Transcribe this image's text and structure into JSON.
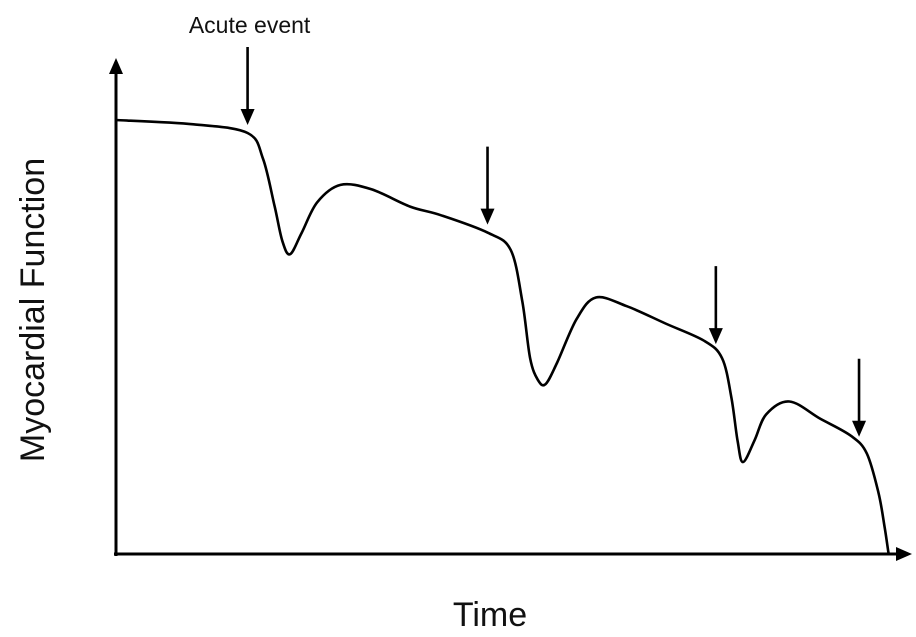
{
  "chart_data": {
    "type": "line",
    "title": "",
    "xlabel": "Time",
    "ylabel": "Myocardial Function",
    "xlim": [
      0,
      100
    ],
    "ylim": [
      0,
      100
    ],
    "grid": false,
    "line_color": "#000000",
    "series": [
      {
        "points": [
          [
            0,
            100
          ],
          [
            10,
            99
          ],
          [
            17,
            97
          ],
          [
            19,
            91
          ],
          [
            20.5,
            80
          ],
          [
            21.5,
            72
          ],
          [
            22.5,
            69
          ],
          [
            24,
            74
          ],
          [
            26,
            81
          ],
          [
            29,
            85
          ],
          [
            33,
            84
          ],
          [
            38,
            80
          ],
          [
            42,
            78
          ],
          [
            48,
            74
          ],
          [
            51,
            70
          ],
          [
            52.5,
            58
          ],
          [
            53.5,
            45
          ],
          [
            54.5,
            40
          ],
          [
            55.5,
            39
          ],
          [
            57,
            44
          ],
          [
            59.5,
            54
          ],
          [
            62,
            59
          ],
          [
            66,
            57
          ],
          [
            71,
            53
          ],
          [
            76,
            49
          ],
          [
            78.3,
            45
          ],
          [
            79.5,
            36
          ],
          [
            80.3,
            26
          ],
          [
            81,
            21
          ],
          [
            82.5,
            26
          ],
          [
            84,
            32
          ],
          [
            87,
            35
          ],
          [
            91,
            31
          ],
          [
            95,
            27
          ],
          [
            97,
            23
          ],
          [
            98.5,
            14
          ],
          [
            99.3,
            6
          ],
          [
            99.8,
            0
          ]
        ]
      }
    ],
    "annotations": [
      {
        "text": "Acute event",
        "x": 17
      },
      {
        "text": "",
        "x": 48
      },
      {
        "text": "",
        "x": 77.5
      },
      {
        "text": "",
        "x": 96
      }
    ]
  }
}
